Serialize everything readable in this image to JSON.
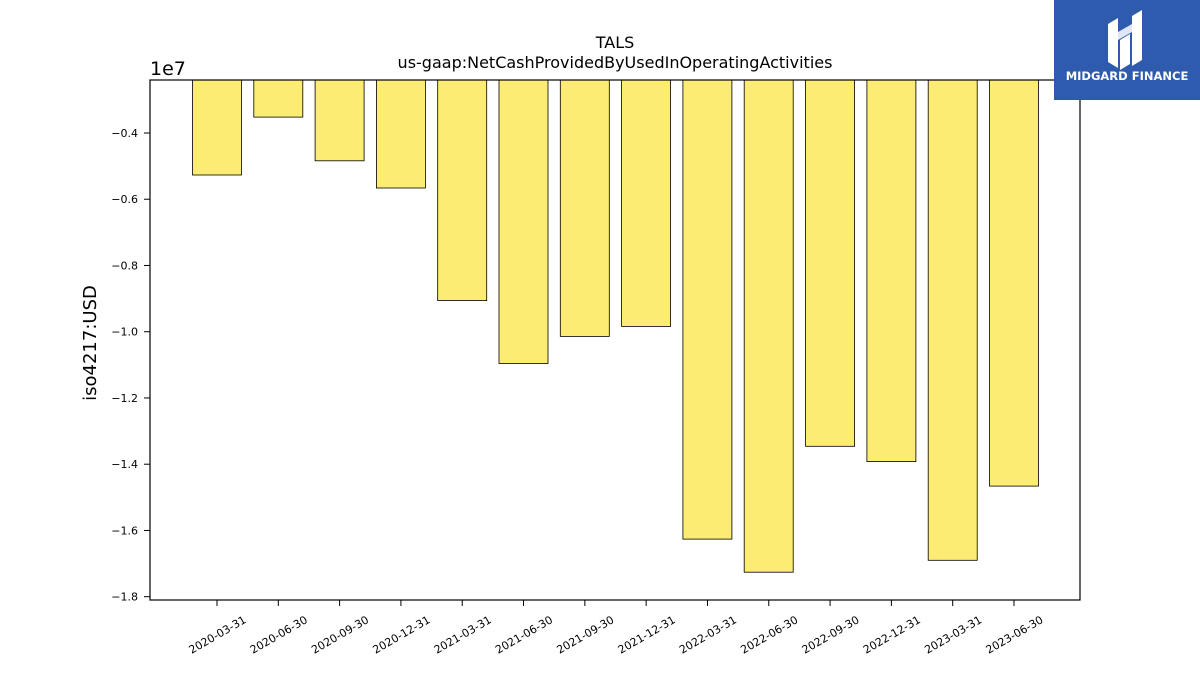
{
  "chart_data": {
    "type": "bar",
    "title": "TALS",
    "subtitle": "us-gaap:NetCashProvidedByUsedInOperatingActivities",
    "ylabel": "iso4217:USD",
    "xlabel": "",
    "offset_label": "1e7",
    "categories": [
      "2020-03-31",
      "2020-06-30",
      "2020-09-30",
      "2020-12-31",
      "2021-03-31",
      "2021-06-30",
      "2021-09-30",
      "2021-12-31",
      "2022-03-31",
      "2022-06-30",
      "2022-09-30",
      "2022-12-31",
      "2023-03-31",
      "2023-06-30"
    ],
    "values": [
      -5267000,
      -3520000,
      -4840000,
      -5660000,
      -9060000,
      -10960000,
      -10140000,
      -9840000,
      -16260000,
      -17260000,
      -13460000,
      -13920000,
      -16900000,
      -14660000
    ],
    "ylim": [
      -18100000,
      -2400000
    ],
    "yticks": [
      -0.4,
      -0.6,
      -0.8,
      -1.0,
      -1.2,
      -1.4,
      -1.6,
      -1.8
    ],
    "ytick_labels": [
      "−0.4",
      "−0.6",
      "−0.8",
      "−1.0",
      "−1.2",
      "−1.4",
      "−1.6",
      "−1.8"
    ],
    "bar_color": "#fdec73",
    "grid": false,
    "legend": "none"
  },
  "logo": {
    "text": "MIDGARD FINANCE",
    "bg_color": "#2e5bad"
  }
}
